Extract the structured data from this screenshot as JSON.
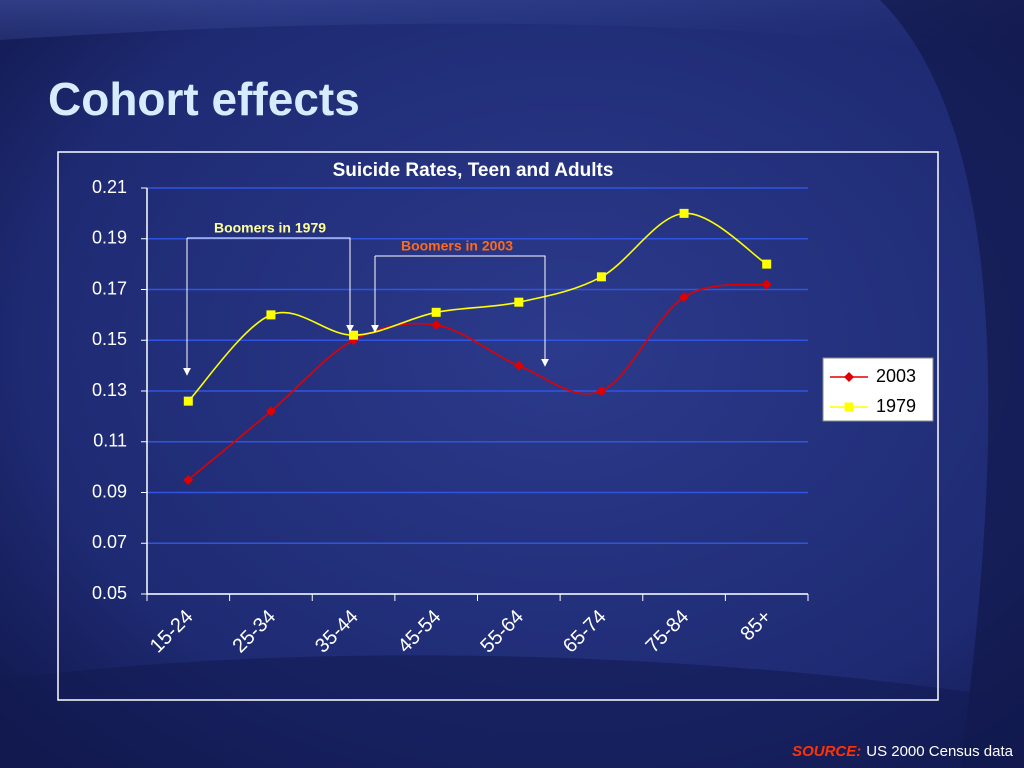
{
  "slide_title": "Cohort effects",
  "source": {
    "label": "SOURCE:",
    "text": "US 2000 Census data"
  },
  "chart_data": {
    "type": "line",
    "title": "Suicide Rates, Teen and Adults",
    "categories": [
      "15-24",
      "25-34",
      "35-44",
      "45-54",
      "55-64",
      "65-74",
      "75-84",
      "85+"
    ],
    "series": [
      {
        "name": "2003",
        "color": "#e00000",
        "marker": "diamond",
        "values": [
          0.095,
          0.122,
          0.15,
          0.156,
          0.14,
          0.13,
          0.167,
          0.172
        ]
      },
      {
        "name": "1979",
        "color": "#ffff00",
        "marker": "square",
        "values": [
          0.126,
          0.16,
          0.152,
          0.161,
          0.165,
          0.175,
          0.2,
          0.18
        ]
      }
    ],
    "ylim": [
      0.05,
      0.21
    ],
    "yticks": [
      0.05,
      0.07,
      0.09,
      0.11,
      0.13,
      0.15,
      0.17,
      0.19,
      0.21
    ],
    "grid": true,
    "legend": "right",
    "annotations": [
      {
        "text": "Boomers in 1979",
        "color": "#ffff99"
      },
      {
        "text": "Boomers in 2003",
        "color": "#ff6a1a"
      }
    ]
  }
}
